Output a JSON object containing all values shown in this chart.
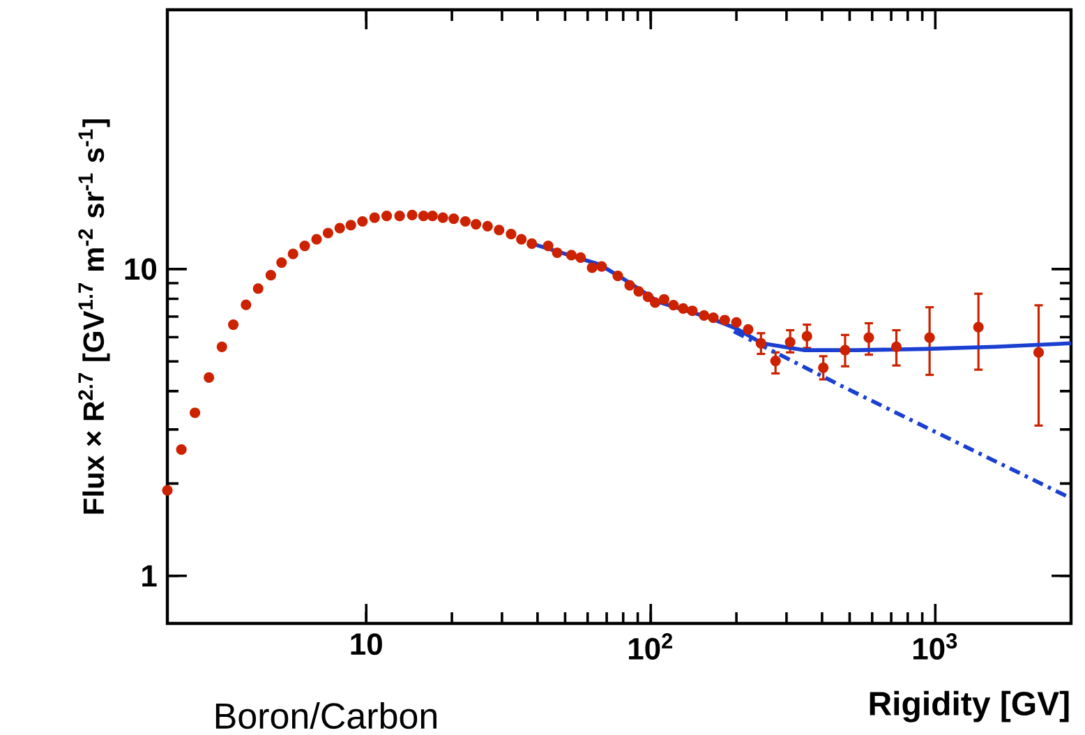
{
  "chart_data": {
    "type": "scatter",
    "xlabel": "Rigidity [GV]",
    "ylabel": "Flux × R$^{2.7}$ [GV$^{1.7}$ m$^{-2}$ sr$^{-1}$ s$^{-1}$]",
    "log": "xy",
    "xlim": [
      2,
      3000
    ],
    "ylim": [
      0.7,
      70
    ],
    "xticks": [
      10,
      {
        "value": 100,
        "label": "10$^{2}$"
      },
      {
        "value": 1000,
        "label": "10$^{3}$"
      }
    ],
    "yticks": [
      1,
      10
    ],
    "annotations": [
      "Boron/Carbon"
    ],
    "series": [
      {
        "color": "#cc2200",
        "marker": "circle",
        "x": [
          2.0,
          2.24,
          2.5,
          2.8,
          3.11,
          3.41,
          3.78,
          4.17,
          4.62,
          5.04,
          5.53,
          6.08,
          6.69,
          7.34,
          8.07,
          8.83,
          9.7,
          10.7,
          11.8,
          13.1,
          14.5,
          15.9,
          17.1,
          18.6,
          20.3,
          22.3,
          24.3,
          26.7,
          29.3,
          32.3,
          35.1,
          38.2,
          43.6,
          46.9,
          52.6,
          56.7,
          62.2,
          67.2,
          76.6,
          84.3,
          90.7,
          97.8,
          103.6,
          111.4,
          120.2,
          130,
          140,
          153.9,
          166,
          182,
          200,
          220,
          244,
          274.5,
          309,
          354,
          404,
          482,
          584,
          730,
          955,
          1418,
          2308
        ],
        "values": [
          1.9,
          2.58,
          3.4,
          4.43,
          5.58,
          6.59,
          7.65,
          8.64,
          9.55,
          10.5,
          11.2,
          11.9,
          12.5,
          13.1,
          13.6,
          13.9,
          14.3,
          14.7,
          14.9,
          14.9,
          15.0,
          14.9,
          14.9,
          14.7,
          14.6,
          14.3,
          14.0,
          13.8,
          13.4,
          13.0,
          12.5,
          12.1,
          11.9,
          11.3,
          11.1,
          10.9,
          10.1,
          10.2,
          9.5,
          8.85,
          8.46,
          8.12,
          7.78,
          7.97,
          7.63,
          7.44,
          7.31,
          7.06,
          6.94,
          6.82,
          6.7,
          6.36,
          5.73,
          5.02,
          5.78,
          6.04,
          4.77,
          5.44,
          5.98,
          5.58,
          5.98,
          6.47,
          5.35
        ],
        "errors": [
          null,
          null,
          null,
          null,
          null,
          null,
          null,
          null,
          null,
          null,
          null,
          null,
          null,
          null,
          null,
          null,
          null,
          null,
          null,
          null,
          null,
          null,
          null,
          null,
          null,
          null,
          null,
          null,
          null,
          null,
          null,
          null,
          null,
          null,
          null,
          null,
          null,
          null,
          null,
          null,
          null,
          null,
          null,
          null,
          null,
          null,
          null,
          null,
          null,
          null,
          null,
          null,
          [
            5.29,
            6.18
          ],
          [
            4.57,
            5.35
          ],
          [
            5.35,
            6.32
          ],
          [
            5.53,
            6.59
          ],
          [
            4.37,
            5.2
          ],
          [
            4.82,
            6.1
          ],
          [
            5.26,
            6.66
          ],
          [
            4.85,
            6.32
          ],
          [
            4.52,
            7.51
          ],
          [
            4.7,
            8.31
          ],
          [
            3.09,
            7.62
          ]
        ]
      },
      {
        "type": "line",
        "color": "#1a3fd1",
        "marker": "none",
        "line_style": "solid",
        "x": [
          38.2,
          66,
          79.6,
          107,
          135,
          160,
          200,
          246,
          348,
          527,
          925,
          1630,
          3000
        ],
        "values": [
          12.1,
          10.35,
          9.33,
          7.8,
          7.3,
          6.95,
          6.4,
          5.73,
          5.44,
          5.44,
          5.49,
          5.58,
          5.73
        ]
      },
      {
        "type": "line",
        "color": "#1a3fd1",
        "marker": "none",
        "line_style": "dashed",
        "x": [
          196,
          483,
          3000
        ],
        "values": [
          6.26,
          4.1,
          1.79
        ]
      }
    ]
  }
}
